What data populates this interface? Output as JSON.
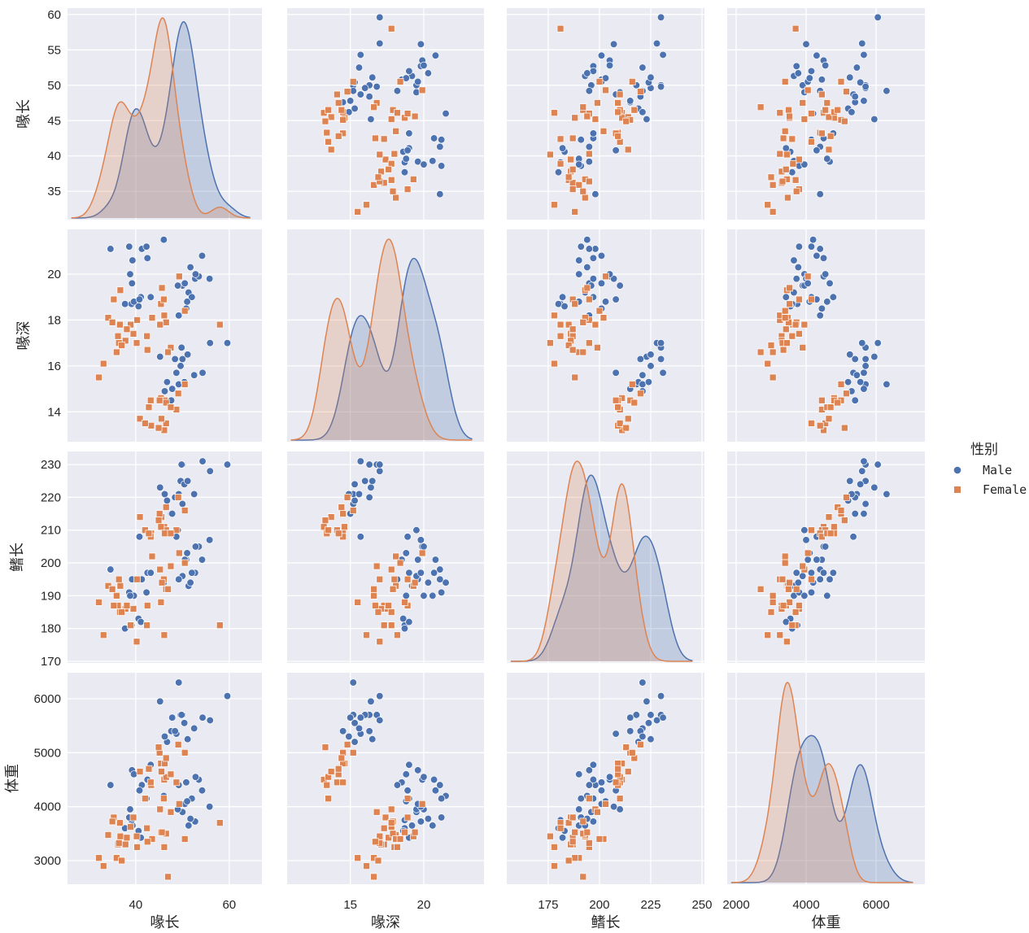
{
  "chart_data": {
    "type": "pairplot",
    "variables": [
      "喙长",
      "喙深",
      "鳍长",
      "体重"
    ],
    "axes": [
      {
        "label": "喙长",
        "range": [
          25.4,
          67
        ],
        "ticks": [
          40,
          60
        ],
        "yrange": [
          31,
          60.9
        ],
        "yticks": [
          35,
          40,
          45,
          50,
          55,
          60
        ]
      },
      {
        "label": "喙深",
        "range": [
          10.7,
          24.1
        ],
        "ticks": [
          15,
          20
        ],
        "yrange": [
          12.7,
          21.95
        ],
        "yticks": [
          14,
          16,
          18,
          20
        ]
      },
      {
        "label": "鳍长",
        "range": [
          154.8,
          251.2
        ],
        "ticks": [
          175,
          200,
          225,
          250
        ],
        "yrange": [
          169.5,
          234
        ],
        "yticks": [
          170,
          180,
          190,
          200,
          210,
          220,
          230
        ]
      },
      {
        "label": "体重",
        "range": [
          1744,
          7395
        ],
        "ticks": [
          2000,
          4000,
          6000
        ],
        "yrange": [
          2563,
          6482
        ],
        "yticks": [
          3000,
          4000,
          5000,
          6000
        ]
      }
    ],
    "diagonal": "kde",
    "offdiagonal": "scatter",
    "grid": true,
    "background": "#EAEAF2",
    "legend": {
      "title": "性别",
      "placement": "right"
    },
    "series": [
      {
        "name": "Male",
        "color": "#4C72B0",
        "marker": "circle",
        "points": [
          [
            39.1,
            18.7,
            181,
            3750
          ],
          [
            39.3,
            20.6,
            190,
            3650
          ],
          [
            39.2,
            19.6,
            195,
            4675
          ],
          [
            38.6,
            21.2,
            191,
            3800
          ],
          [
            34.6,
            21.1,
            198,
            4400
          ],
          [
            42.5,
            20.7,
            197,
            4500
          ],
          [
            46.0,
            21.5,
            194,
            4200
          ],
          [
            37.7,
            18.7,
            180,
            3600
          ],
          [
            40.6,
            18.6,
            183,
            3550
          ],
          [
            41.1,
            19.0,
            182,
            3425
          ],
          [
            43.2,
            19.0,
            197,
            4775
          ],
          [
            41.3,
            21.1,
            195,
            4400
          ],
          [
            39.6,
            18.8,
            190,
            4600
          ],
          [
            40.8,
            18.9,
            208,
            4300
          ],
          [
            38.8,
            20.0,
            190,
            3950
          ],
          [
            42.3,
            21.2,
            191,
            4150
          ],
          [
            50.0,
            19.5,
            196,
            3900
          ],
          [
            51.3,
            19.2,
            193,
            3650
          ],
          [
            52.7,
            19.8,
            197,
            3725
          ],
          [
            53.5,
            19.9,
            205,
            4500
          ],
          [
            49.0,
            19.5,
            210,
            3950
          ],
          [
            50.8,
            18.5,
            201,
            4450
          ],
          [
            52.0,
            19.0,
            197,
            4150
          ],
          [
            55.8,
            19.8,
            207,
            4000
          ],
          [
            49.2,
            18.2,
            195,
            4400
          ],
          [
            51.7,
            20.3,
            194,
            3775
          ],
          [
            50.5,
            19.6,
            201,
            4050
          ],
          [
            52.8,
            20.0,
            205,
            4550
          ],
          [
            54.2,
            20.8,
            201,
            4300
          ],
          [
            51.0,
            18.8,
            203,
            4100
          ],
          [
            50.0,
            16.3,
            230,
            5700
          ],
          [
            50.0,
            15.2,
            218,
            5700
          ],
          [
            47.6,
            14.5,
            215,
            5400
          ],
          [
            46.7,
            15.3,
            219,
            5200
          ],
          [
            49.6,
            16.0,
            225,
            5700
          ],
          [
            48.7,
            15.7,
            208,
            5350
          ],
          [
            49.2,
            15.2,
            221,
            6300
          ],
          [
            52.5,
            15.6,
            221,
            5450
          ],
          [
            50.4,
            15.3,
            224,
            5550
          ],
          [
            45.2,
            16.4,
            223,
            5950
          ],
          [
            49.8,
            16.8,
            230,
            5700
          ],
          [
            55.9,
            17.0,
            228,
            5600
          ],
          [
            59.6,
            17.0,
            230,
            6050
          ],
          [
            48.4,
            16.3,
            220,
            5400
          ],
          [
            51.1,
            16.5,
            225,
            5250
          ],
          [
            46.2,
            14.9,
            221,
            5300
          ],
          [
            54.3,
            15.7,
            231,
            5650
          ],
          [
            47.8,
            15.0,
            215,
            5650
          ]
        ]
      },
      {
        "name": "Female",
        "color": "#DD8452",
        "marker": "square",
        "points": [
          [
            39.5,
            17.4,
            186,
            3800
          ],
          [
            40.3,
            18.0,
            195,
            3250
          ],
          [
            36.7,
            19.3,
            193,
            3450
          ],
          [
            38.9,
            17.8,
            181,
            3625
          ],
          [
            36.6,
            17.8,
            185,
            3700
          ],
          [
            34.1,
            18.1,
            193,
            3475
          ],
          [
            36.2,
            17.3,
            187,
            3300
          ],
          [
            37.8,
            17.1,
            186,
            3300
          ],
          [
            35.9,
            16.6,
            190,
            3050
          ],
          [
            35.3,
            18.9,
            187,
            3800
          ],
          [
            36.4,
            17.0,
            195,
            3325
          ],
          [
            33.1,
            16.1,
            178,
            2900
          ],
          [
            32.1,
            15.5,
            188,
            3050
          ],
          [
            38.1,
            17.6,
            187,
            3425
          ],
          [
            37.0,
            16.9,
            185,
            3000
          ],
          [
            35.0,
            17.9,
            192,
            3725
          ],
          [
            40.2,
            17.0,
            176,
            3450
          ],
          [
            46.5,
            17.9,
            192,
            3500
          ],
          [
            45.4,
            18.7,
            188,
            3525
          ],
          [
            45.2,
            17.8,
            198,
            3950
          ],
          [
            46.1,
            18.2,
            178,
            3250
          ],
          [
            46.0,
            18.9,
            195,
            4150
          ],
          [
            58.0,
            17.8,
            181,
            3700
          ],
          [
            42.4,
            17.3,
            181,
            3600
          ],
          [
            47.5,
            16.8,
            199,
            3900
          ],
          [
            43.5,
            18.1,
            202,
            3400
          ],
          [
            45.6,
            19.4,
            194,
            3525
          ],
          [
            46.9,
            16.6,
            192,
            2700
          ],
          [
            50.5,
            18.4,
            200,
            3400
          ],
          [
            49.3,
            19.9,
            203,
            4050
          ],
          [
            42.5,
            16.7,
            187,
            3350
          ],
          [
            46.1,
            13.2,
            211,
            4500
          ],
          [
            48.7,
            14.1,
            210,
            4450
          ],
          [
            46.5,
            13.5,
            210,
            4550
          ],
          [
            45.4,
            14.6,
            211,
            4800
          ],
          [
            43.3,
            13.4,
            209,
            4400
          ],
          [
            40.9,
            13.7,
            214,
            4650
          ],
          [
            45.5,
            13.7,
            214,
            4650
          ],
          [
            42.0,
            13.5,
            210,
            4150
          ],
          [
            46.2,
            14.5,
            209,
            4800
          ],
          [
            45.1,
            14.5,
            215,
            5000
          ],
          [
            46.5,
            14.4,
            217,
            4900
          ],
          [
            43.2,
            14.5,
            208,
            4450
          ],
          [
            47.5,
            14.2,
            209,
            4600
          ],
          [
            44.9,
            13.3,
            213,
            5100
          ],
          [
            42.8,
            14.2,
            209,
            4700
          ],
          [
            50.5,
            15.2,
            216,
            5000
          ],
          [
            49.1,
            14.8,
            220,
            5150
          ]
        ]
      }
    ]
  }
}
